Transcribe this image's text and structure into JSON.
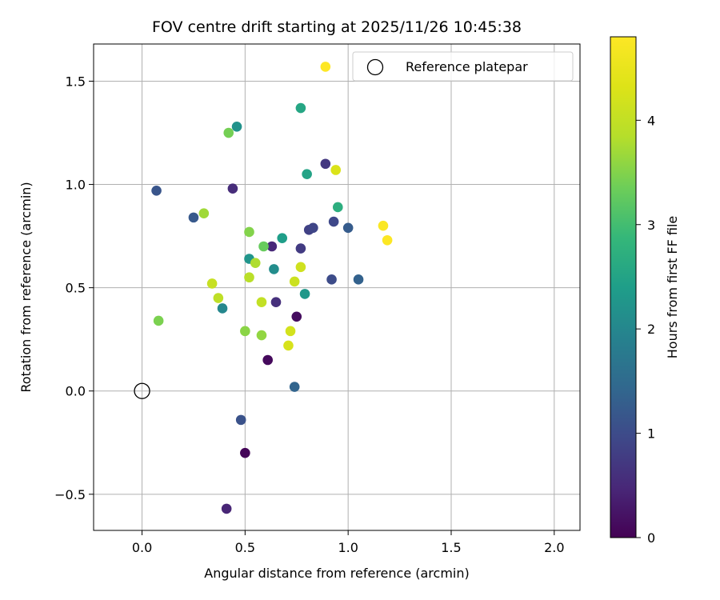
{
  "chart_data": {
    "type": "scatter",
    "title": "FOV centre drift starting at 2025/11/26 10:45:38",
    "xlabel": "Angular distance from reference (arcmin)",
    "ylabel": "Rotation from reference (arcmin)",
    "xlim": [
      -0.235,
      2.125
    ],
    "ylim": [
      -0.675,
      1.68
    ],
    "grid": true,
    "x_ticks": [
      0.0,
      0.5,
      1.0,
      1.5,
      2.0
    ],
    "x_tick_labels": [
      "0.0",
      "0.5",
      "1.0",
      "1.5",
      "2.0"
    ],
    "y_ticks": [
      -0.5,
      0.0,
      0.5,
      1.0,
      1.5
    ],
    "y_tick_labels": [
      "−0.5",
      "0.0",
      "0.5",
      "1.0",
      "1.5"
    ],
    "legend": {
      "label": "Reference platepar",
      "location": "top-right"
    },
    "reference_point": {
      "x": 0.0,
      "y": 0.0
    },
    "colorbar": {
      "label": "Hours from first FF file",
      "colormap": "viridis",
      "range": [
        0,
        4.8
      ],
      "ticks": [
        0,
        1,
        2,
        3,
        4
      ],
      "tick_labels": [
        "0",
        "1",
        "2",
        "3",
        "4"
      ]
    },
    "series": [
      {
        "name": "FOV centre drift",
        "points": [
          {
            "x": 0.5,
            "y": -0.3,
            "hours": 0.05
          },
          {
            "x": 0.61,
            "y": 0.15,
            "hours": 0.1
          },
          {
            "x": 0.75,
            "y": 0.36,
            "hours": 0.15
          },
          {
            "x": 0.41,
            "y": -0.57,
            "hours": 0.45
          },
          {
            "x": 0.63,
            "y": 0.7,
            "hours": 0.5
          },
          {
            "x": 0.44,
            "y": 0.98,
            "hours": 0.55
          },
          {
            "x": 0.65,
            "y": 0.43,
            "hours": 0.6
          },
          {
            "x": 0.89,
            "y": 1.1,
            "hours": 0.7
          },
          {
            "x": 0.77,
            "y": 0.69,
            "hours": 0.75
          },
          {
            "x": 0.81,
            "y": 0.78,
            "hours": 0.85
          },
          {
            "x": 0.83,
            "y": 0.79,
            "hours": 0.9
          },
          {
            "x": 0.93,
            "y": 0.82,
            "hours": 0.95
          },
          {
            "x": 0.92,
            "y": 0.54,
            "hours": 1.0
          },
          {
            "x": 0.48,
            "y": -0.14,
            "hours": 1.1
          },
          {
            "x": 0.07,
            "y": 0.97,
            "hours": 1.15
          },
          {
            "x": 0.25,
            "y": 0.84,
            "hours": 1.2
          },
          {
            "x": 1.0,
            "y": 0.79,
            "hours": 1.25
          },
          {
            "x": 1.05,
            "y": 0.54,
            "hours": 1.35
          },
          {
            "x": 0.74,
            "y": 0.02,
            "hours": 1.4
          },
          {
            "x": 0.39,
            "y": 0.4,
            "hours": 2.0
          },
          {
            "x": 0.64,
            "y": 0.59,
            "hours": 2.1
          },
          {
            "x": 0.46,
            "y": 1.28,
            "hours": 2.2
          },
          {
            "x": 0.52,
            "y": 0.64,
            "hours": 2.25
          },
          {
            "x": 0.79,
            "y": 0.47,
            "hours": 2.3
          },
          {
            "x": 0.68,
            "y": 0.74,
            "hours": 2.4
          },
          {
            "x": 0.8,
            "y": 1.05,
            "hours": 2.5
          },
          {
            "x": 0.77,
            "y": 1.37,
            "hours": 2.55
          },
          {
            "x": 0.95,
            "y": 0.89,
            "hours": 2.7
          },
          {
            "x": 0.59,
            "y": 0.7,
            "hours": 3.3
          },
          {
            "x": 0.42,
            "y": 1.25,
            "hours": 3.4
          },
          {
            "x": 0.08,
            "y": 0.34,
            "hours": 3.45
          },
          {
            "x": 0.52,
            "y": 0.77,
            "hours": 3.5
          },
          {
            "x": 0.5,
            "y": 0.29,
            "hours": 3.55
          },
          {
            "x": 0.58,
            "y": 0.27,
            "hours": 3.6
          },
          {
            "x": 0.3,
            "y": 0.86,
            "hours": 3.7
          },
          {
            "x": 0.55,
            "y": 0.62,
            "hours": 3.8
          },
          {
            "x": 0.52,
            "y": 0.55,
            "hours": 3.9
          },
          {
            "x": 0.37,
            "y": 0.45,
            "hours": 3.95
          },
          {
            "x": 0.58,
            "y": 0.43,
            "hours": 4.0
          },
          {
            "x": 0.34,
            "y": 0.52,
            "hours": 4.05
          },
          {
            "x": 0.74,
            "y": 0.53,
            "hours": 4.1
          },
          {
            "x": 0.77,
            "y": 0.6,
            "hours": 4.15
          },
          {
            "x": 0.72,
            "y": 0.29,
            "hours": 4.2
          },
          {
            "x": 0.71,
            "y": 0.22,
            "hours": 4.25
          },
          {
            "x": 0.94,
            "y": 1.07,
            "hours": 4.3
          },
          {
            "x": 1.17,
            "y": 0.8,
            "hours": 4.75
          },
          {
            "x": 1.19,
            "y": 0.73,
            "hours": 4.78
          },
          {
            "x": 0.89,
            "y": 1.57,
            "hours": 4.8
          }
        ]
      }
    ]
  }
}
